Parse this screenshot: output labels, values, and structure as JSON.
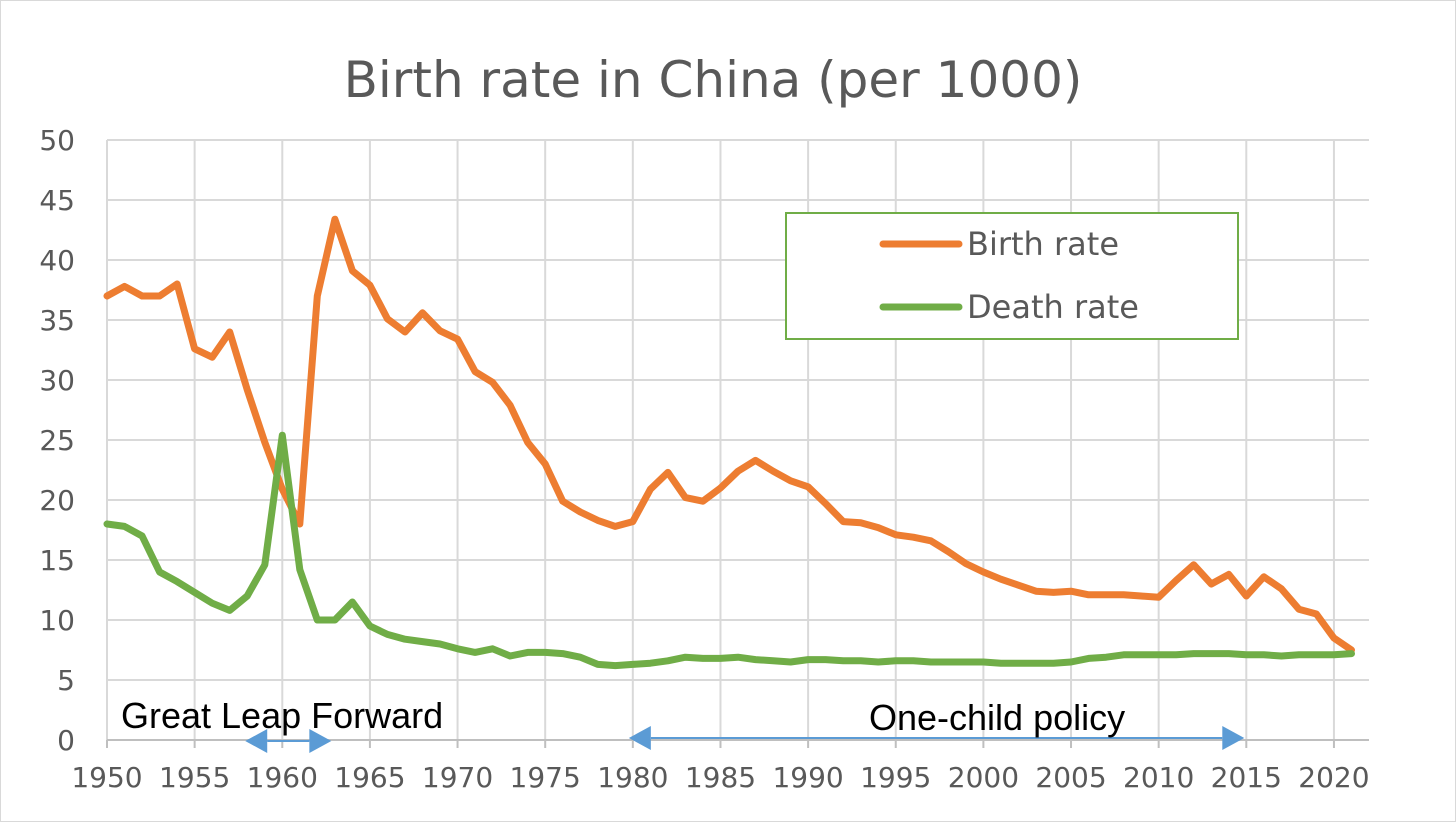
{
  "chart_data": {
    "type": "line",
    "title": "Birth rate in China (per 1000)",
    "xlabel": "",
    "ylabel": "",
    "xlim": [
      1950,
      2022
    ],
    "ylim": [
      0,
      50
    ],
    "x_ticks": [
      1950,
      1955,
      1960,
      1965,
      1970,
      1975,
      1980,
      1985,
      1990,
      1995,
      2000,
      2005,
      2010,
      2015,
      2020
    ],
    "y_ticks": [
      0,
      5,
      10,
      15,
      20,
      25,
      30,
      35,
      40,
      45,
      50
    ],
    "grid": true,
    "legend_position": "top-right",
    "x": [
      1950,
      1951,
      1952,
      1953,
      1954,
      1955,
      1956,
      1957,
      1958,
      1959,
      1960,
      1961,
      1962,
      1963,
      1964,
      1965,
      1966,
      1967,
      1968,
      1969,
      1970,
      1971,
      1972,
      1973,
      1974,
      1975,
      1976,
      1977,
      1978,
      1979,
      1980,
      1981,
      1982,
      1983,
      1984,
      1985,
      1986,
      1987,
      1988,
      1989,
      1990,
      1991,
      1992,
      1993,
      1994,
      1995,
      1996,
      1997,
      1998,
      1999,
      2000,
      2001,
      2002,
      2003,
      2004,
      2005,
      2006,
      2007,
      2008,
      2009,
      2010,
      2011,
      2012,
      2013,
      2014,
      2015,
      2016,
      2017,
      2018,
      2019,
      2020,
      2021
    ],
    "series": [
      {
        "name": "Birth rate",
        "color": "#ED7D31",
        "values": [
          37.0,
          37.8,
          37.0,
          37.0,
          38.0,
          32.6,
          31.9,
          34.0,
          29.2,
          24.8,
          20.9,
          18.0,
          37.0,
          43.4,
          39.1,
          37.9,
          35.1,
          34.0,
          35.6,
          34.1,
          33.4,
          30.7,
          29.8,
          27.9,
          24.8,
          23.0,
          19.9,
          19.0,
          18.3,
          17.8,
          18.2,
          20.9,
          22.3,
          20.2,
          19.9,
          21.0,
          22.4,
          23.3,
          22.4,
          21.6,
          21.1,
          19.7,
          18.2,
          18.1,
          17.7,
          17.1,
          16.9,
          16.6,
          15.7,
          14.7,
          14.0,
          13.4,
          12.9,
          12.4,
          12.3,
          12.4,
          12.1,
          12.1,
          12.1,
          12.0,
          11.9,
          13.3,
          14.6,
          13.0,
          13.8,
          12.0,
          13.6,
          12.6,
          10.9,
          10.5,
          8.5,
          7.5
        ]
      },
      {
        "name": "Death rate",
        "color": "#70AD47",
        "values": [
          18.0,
          17.8,
          17.0,
          14.0,
          13.2,
          12.3,
          11.4,
          10.8,
          12.0,
          14.6,
          25.4,
          14.2,
          10.0,
          10.0,
          11.5,
          9.5,
          8.8,
          8.4,
          8.2,
          8.0,
          7.6,
          7.3,
          7.6,
          7.0,
          7.3,
          7.3,
          7.2,
          6.9,
          6.3,
          6.2,
          6.3,
          6.4,
          6.6,
          6.9,
          6.8,
          6.8,
          6.9,
          6.7,
          6.6,
          6.5,
          6.7,
          6.7,
          6.6,
          6.6,
          6.5,
          6.6,
          6.6,
          6.5,
          6.5,
          6.5,
          6.5,
          6.4,
          6.4,
          6.4,
          6.4,
          6.5,
          6.8,
          6.9,
          7.1,
          7.1,
          7.1,
          7.1,
          7.2,
          7.2,
          7.2,
          7.1,
          7.1,
          7.0,
          7.1,
          7.1,
          7.1,
          7.2
        ]
      }
    ],
    "annotations": [
      {
        "text": "Great Leap Forward",
        "from": 1958,
        "to": 1962
      },
      {
        "text": "One-child policy",
        "from": 1980,
        "to": 2015
      }
    ]
  }
}
